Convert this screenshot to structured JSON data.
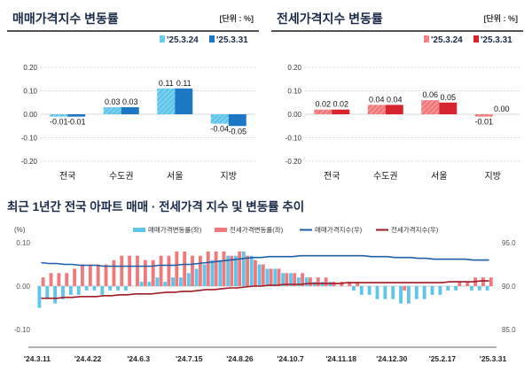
{
  "panels": {
    "left": {
      "title": "매매가격지수 변동률",
      "unit": "[단위 : %]"
    },
    "right": {
      "title": "전세가격지수 변동률",
      "unit": "[단위 : %]"
    }
  },
  "bottom": {
    "title": "최근 1년간 전국 아파트 매매 · 전세가격 지수 및 변동률 추이"
  },
  "colors": {
    "sale_a": "#5fc6ea",
    "sale_b": "#1c78c4",
    "jeonse_a": "#f0797c",
    "jeonse_b": "#d8242c",
    "sale_index": "#1f5fa8",
    "jeonse_index": "#a11a24"
  },
  "chart_data": [
    {
      "type": "bar",
      "title": "매매가격지수 변동률",
      "categories": [
        "전국",
        "수도권",
        "서울",
        "지방"
      ],
      "series": [
        {
          "name": "'25.3.24",
          "values": [
            -0.01,
            0.03,
            0.11,
            -0.04
          ],
          "color": "#5fc6ea"
        },
        {
          "name": "'25.3.31",
          "values": [
            -0.01,
            0.03,
            0.11,
            -0.05
          ],
          "color": "#1c78c4"
        }
      ],
      "ylim": [
        -0.2,
        0.2
      ],
      "yticks": [
        "0.20",
        "0.10",
        "0.00",
        "-0.10",
        "-0.20"
      ],
      "value_labels": [
        [
          "-0.01",
          "0.03",
          "0.11",
          "-0.04"
        ],
        [
          "-0.01",
          "0.03",
          "0.11",
          "-0.05"
        ]
      ]
    },
    {
      "type": "bar",
      "title": "전세가격지수 변동률",
      "categories": [
        "전국",
        "수도권",
        "서울",
        "지방"
      ],
      "series": [
        {
          "name": "'25.3.24",
          "values": [
            0.02,
            0.04,
            0.06,
            -0.01
          ],
          "color": "#f0797c"
        },
        {
          "name": "'25.3.31",
          "values": [
            0.02,
            0.04,
            0.05,
            0.0
          ],
          "color": "#d8242c"
        }
      ],
      "ylim": [
        -0.2,
        0.2
      ],
      "yticks": [
        "0.20",
        "0.10",
        "0.00",
        "-0.10",
        "-0.20"
      ],
      "value_labels": [
        [
          "0.02",
          "0.04",
          "0.06",
          "-0.01"
        ],
        [
          "0.02",
          "0.04",
          "0.05",
          "0.00"
        ]
      ]
    },
    {
      "type": "bar+line",
      "title": "최근 1년간 전국 아파트 매매 · 전세가격 지수 및 변동률 추이",
      "ylabel_left": "(%)",
      "ylim_left": [
        -0.1,
        0.1
      ],
      "yticks_left": [
        "0.10",
        "0.00",
        "-0.10"
      ],
      "ylim_right": [
        85.0,
        95.0
      ],
      "yticks_right": [
        "95.0",
        "90.0",
        "85.0"
      ],
      "x_tick_labels": [
        "'24.3.11",
        "'24.4.22",
        "'24.6.3",
        "'24.7.15",
        "'24.8.26",
        "'24.10.7",
        "'24.11.18",
        "'24.12.30",
        "'25.2.17",
        "'25.3.31"
      ],
      "legend": [
        "매매가격변동률(좌)",
        "전세가격변동률(좌)",
        "매매가격지수(우)",
        "전세가격지수(우)"
      ],
      "sale_change": [
        -0.05,
        -0.03,
        -0.04,
        -0.03,
        -0.02,
        -0.02,
        -0.01,
        -0.01,
        -0.02,
        -0.01,
        -0.01,
        -0.01,
        0.0,
        0.01,
        0.01,
        0.02,
        0.01,
        0.02,
        0.02,
        0.03,
        0.04,
        0.05,
        0.06,
        0.06,
        0.07,
        0.07,
        0.08,
        0.07,
        0.05,
        0.04,
        0.04,
        0.03,
        0.03,
        0.02,
        0.02,
        0.01,
        0.01,
        0.01,
        0.0,
        0.0,
        -0.01,
        -0.02,
        -0.02,
        -0.03,
        -0.03,
        -0.03,
        -0.04,
        -0.04,
        -0.03,
        -0.03,
        -0.02,
        -0.02,
        -0.01,
        -0.01,
        0.0,
        -0.01,
        -0.01,
        -0.01
      ],
      "jeonse_change": [
        0.02,
        0.03,
        0.03,
        0.03,
        0.04,
        0.05,
        0.05,
        0.05,
        0.05,
        0.06,
        0.07,
        0.07,
        0.07,
        0.06,
        0.06,
        0.07,
        0.07,
        0.08,
        0.08,
        0.07,
        0.07,
        0.08,
        0.08,
        0.08,
        0.07,
        0.08,
        0.07,
        0.06,
        0.05,
        0.04,
        0.04,
        0.03,
        0.03,
        0.03,
        0.02,
        0.02,
        0.02,
        0.01,
        0.01,
        0.01,
        0.01,
        0.0,
        0.0,
        0.0,
        0.0,
        0.0,
        -0.01,
        0.0,
        0.0,
        0.0,
        0.0,
        0.0,
        0.0,
        0.01,
        0.01,
        0.02,
        0.02,
        0.02
      ],
      "sale_index": [
        92.7,
        92.6,
        92.6,
        92.5,
        92.5,
        92.4,
        92.4,
        92.4,
        92.3,
        92.3,
        92.3,
        92.3,
        92.3,
        92.3,
        92.3,
        92.4,
        92.4,
        92.4,
        92.5,
        92.5,
        92.6,
        92.7,
        92.8,
        92.9,
        93.0,
        93.1,
        93.2,
        93.3,
        93.3,
        93.4,
        93.4,
        93.4,
        93.4,
        93.5,
        93.5,
        93.5,
        93.5,
        93.5,
        93.5,
        93.5,
        93.5,
        93.5,
        93.4,
        93.4,
        93.4,
        93.3,
        93.3,
        93.3,
        93.2,
        93.2,
        93.1,
        93.1,
        93.1,
        93.1,
        93.1,
        93.0,
        93.0,
        93.0
      ],
      "jeonse_index": [
        88.6,
        88.6,
        88.6,
        88.7,
        88.7,
        88.8,
        88.8,
        88.8,
        88.9,
        88.9,
        89.0,
        89.0,
        89.1,
        89.1,
        89.1,
        89.2,
        89.3,
        89.3,
        89.4,
        89.4,
        89.5,
        89.6,
        89.6,
        89.7,
        89.8,
        89.8,
        89.9,
        90.0,
        90.0,
        90.1,
        90.1,
        90.2,
        90.2,
        90.2,
        90.3,
        90.3,
        90.3,
        90.3,
        90.3,
        90.4,
        90.4,
        90.4,
        90.4,
        90.4,
        90.4,
        90.4,
        90.4,
        90.4,
        90.4,
        90.4,
        90.4,
        90.4,
        90.5,
        90.5,
        90.5,
        90.5,
        90.6,
        90.6
      ]
    }
  ]
}
